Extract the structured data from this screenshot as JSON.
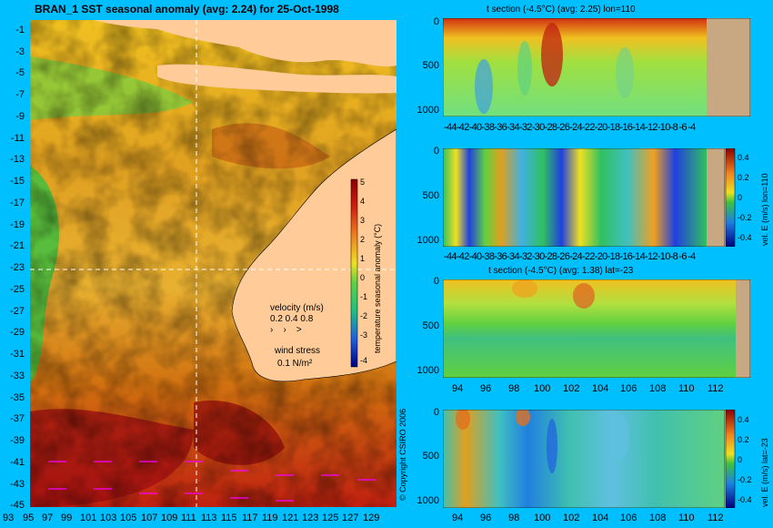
{
  "map": {
    "title": "BRAN_1 SST seasonal anomaly (avg: 2.24) for 25-Oct-1998",
    "lat_labels": [
      "-1",
      "-3",
      "-5",
      "-7",
      "-9",
      "-11",
      "-13",
      "-15",
      "-17",
      "-19",
      "-21",
      "-23",
      "-25",
      "-27",
      "-29",
      "-31",
      "-33",
      "-35",
      "-37",
      "-39",
      "-41",
      "-43",
      "-45"
    ],
    "lon_labels": [
      "93",
      "95",
      "97",
      "99",
      "101",
      "103",
      "105",
      "107",
      "109",
      "111",
      "113",
      "115",
      "117",
      "119",
      "121",
      "123",
      "125",
      "127",
      "129"
    ],
    "colorbar_label": "temperature seasonal anomaly (°C)",
    "colorbar_ticks": [
      "5",
      "4",
      "3",
      "2",
      "1",
      "0",
      "-1",
      "-2",
      "-3",
      "-4"
    ],
    "velocity_label": "velocity (m/s)",
    "velocity_scale": "0.2 0.4 0.8",
    "wind_label": "wind stress",
    "wind_scale": "0.1 N/m²",
    "copyright": "© Copyright CSIRO 2006"
  },
  "panels": [
    {
      "title": "t section (-4.5°C) (avg: 2.25) lon=110",
      "y_ticks": [
        "0",
        "500",
        "1000"
      ],
      "x_ticks": [
        "-44",
        "-42",
        "-40",
        "-38",
        "-36",
        "-34",
        "-32",
        "-30",
        "-28",
        "-26",
        "-24",
        "-22",
        "-20",
        "-18",
        "-16",
        "-14",
        "-12",
        "-10",
        "-8",
        "-6",
        "-4"
      ]
    },
    {
      "title": "",
      "y_ticks": [
        "0",
        "500",
        "1000"
      ],
      "x_ticks": [
        "-44",
        "-42",
        "-40",
        "-38",
        "-36",
        "-34",
        "-32",
        "-30",
        "-28",
        "-26",
        "-24",
        "-22",
        "-20",
        "-18",
        "-16",
        "-14",
        "-12",
        "-10",
        "-8",
        "-6",
        "-4"
      ],
      "colorbar_label": "vel. E (m/s) lon=110",
      "colorbar_ticks": [
        "0.4",
        "0.2",
        "0",
        "-0.2",
        "-0.4"
      ]
    },
    {
      "title": "t section (-4.5°C) (avg: 1.38) lat=-23",
      "y_ticks": [
        "0",
        "500",
        "1000"
      ],
      "x_ticks": [
        "94",
        "96",
        "98",
        "100",
        "102",
        "104",
        "106",
        "108",
        "110",
        "112"
      ]
    },
    {
      "title": "",
      "y_ticks": [
        "0",
        "500",
        "1000"
      ],
      "x_ticks": [
        "94",
        "96",
        "98",
        "100",
        "102",
        "104",
        "106",
        "108",
        "110",
        "112"
      ],
      "colorbar_label": "vel. E (m/s) lat=-23",
      "colorbar_ticks": [
        "0.4",
        "0.2",
        "0",
        "-0.2",
        "-0.4"
      ]
    }
  ],
  "colors": {
    "background": "#00bfff",
    "land": "#ffcc99",
    "seafloor": "#c8a882"
  }
}
